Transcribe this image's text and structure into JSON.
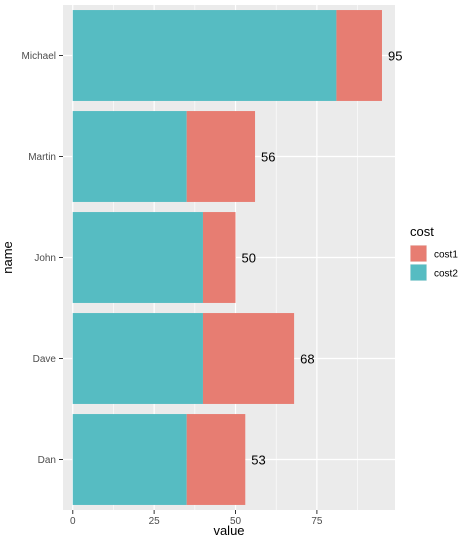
{
  "chart_data": {
    "type": "bar",
    "orientation": "horizontal",
    "stacked": true,
    "categories": [
      "Michael",
      "Martin",
      "John",
      "Dave",
      "Dan"
    ],
    "series": [
      {
        "name": "cost2",
        "values": [
          81,
          35,
          40,
          40,
          35
        ],
        "color": "#56bcc2"
      },
      {
        "name": "cost1",
        "values": [
          14,
          21,
          10,
          28,
          18
        ],
        "color": "#e77d72"
      }
    ],
    "totals": [
      95,
      56,
      50,
      68,
      53
    ],
    "xlabel": "value",
    "ylabel": "name",
    "xlim": [
      -3,
      99
    ],
    "xticks": [
      0,
      25,
      50,
      75
    ],
    "legend": {
      "title": "cost",
      "position": "right",
      "entries": [
        "cost1",
        "cost2"
      ]
    },
    "grid": true,
    "panel_background": "#ebebeb"
  }
}
